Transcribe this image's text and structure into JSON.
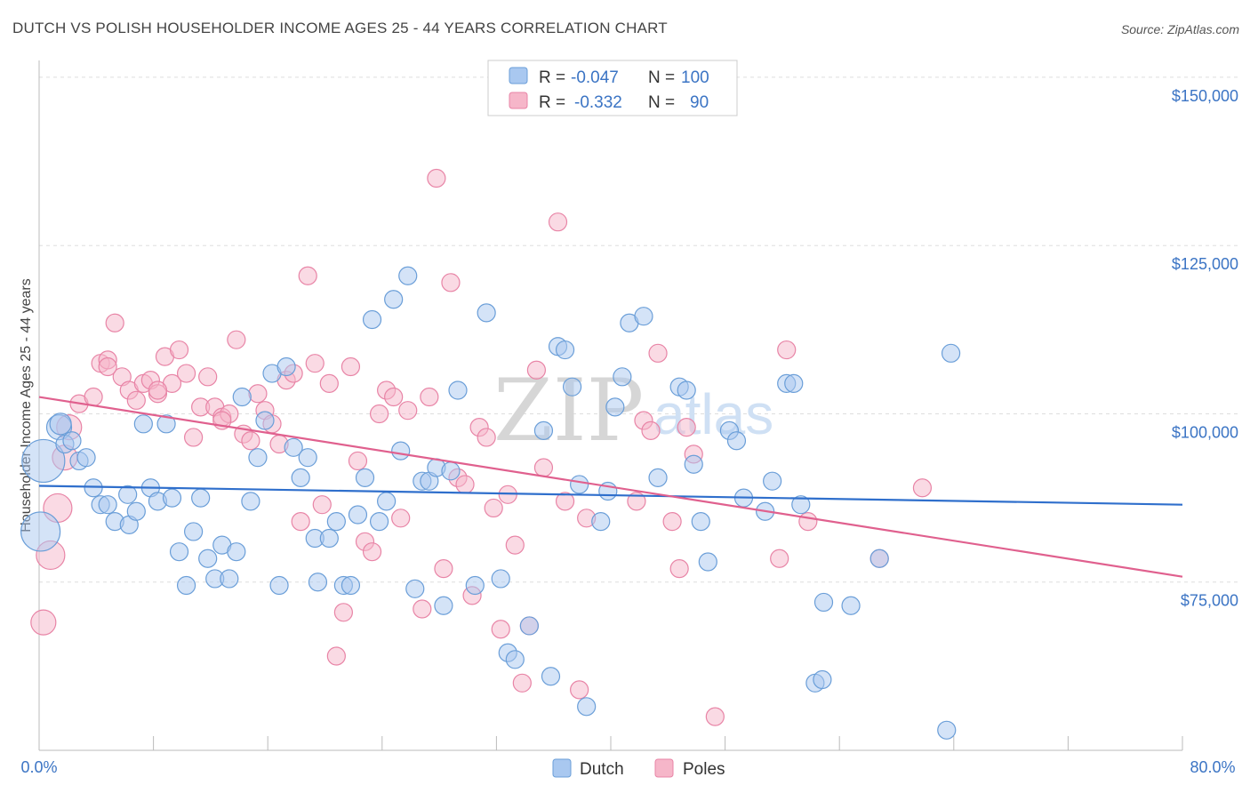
{
  "header": {
    "title": "DUTCH VS POLISH HOUSEHOLDER INCOME AGES 25 - 44 YEARS CORRELATION CHART",
    "source": "Source: ZipAtlas.com"
  },
  "legend": {
    "dutch": {
      "r_label": "R =",
      "r_value": "-0.047",
      "n_label": "N =",
      "n_value": "100"
    },
    "poles": {
      "r_label": "R =",
      "r_value": "-0.332",
      "n_label": "N =",
      "n_value": "90"
    }
  },
  "bottom_legend": {
    "dutch": "Dutch",
    "poles": "Poles"
  },
  "watermark": {
    "zip": "ZIP",
    "atlas": "atlas"
  },
  "colors": {
    "dutch_fill": "#a9c8f0",
    "dutch_stroke": "#6a9ed8",
    "dutch_line": "#2f6fcc",
    "poles_fill": "#f6b6c9",
    "poles_stroke": "#e884a6",
    "poles_line": "#e0608e",
    "tick": "#3b74c4",
    "grid": "#dddddd"
  },
  "chart_data": {
    "type": "scatter",
    "title": "DUTCH VS POLISH HOUSEHOLDER INCOME AGES 25 - 44 YEARS CORRELATION CHART",
    "xlabel": "",
    "ylabel": "Householder Income Ages 25 - 44 years",
    "xlim": [
      0,
      80
    ],
    "ylim": [
      50000,
      152500
    ],
    "x_tick_labels": [
      "0.0%",
      "80.0%"
    ],
    "y_ticks": [
      75000,
      100000,
      125000,
      150000
    ],
    "y_tick_labels": [
      "$75,000",
      "$100,000",
      "$125,000",
      "$150,000"
    ],
    "grid": true,
    "legend_position": "top-center",
    "series": [
      {
        "name": "Dutch",
        "r": -0.047,
        "n": 100,
        "trend": [
          [
            0,
            89300
          ],
          [
            80,
            86500
          ]
        ],
        "points": [
          [
            0.1,
            82500,
            22
          ],
          [
            0.3,
            93000,
            24
          ],
          [
            1.4,
            98000,
            14
          ],
          [
            1.8,
            95500,
            10
          ],
          [
            2.3,
            96000,
            10
          ],
          [
            2.8,
            93000,
            10
          ],
          [
            3.3,
            93500,
            10
          ],
          [
            3.8,
            89000,
            10
          ],
          [
            4.3,
            86500,
            10
          ],
          [
            4.8,
            86500,
            10
          ],
          [
            5.3,
            84000,
            10
          ],
          [
            6.2,
            88000,
            10
          ],
          [
            6.3,
            83500,
            10
          ],
          [
            6.8,
            85500,
            10
          ],
          [
            7.3,
            98500,
            10
          ],
          [
            7.8,
            89000,
            10
          ],
          [
            8.3,
            87000,
            10
          ],
          [
            8.9,
            98500,
            10
          ],
          [
            9.3,
            87500,
            10
          ],
          [
            9.8,
            79500,
            10
          ],
          [
            10.3,
            74500,
            10
          ],
          [
            10.8,
            82500,
            10
          ],
          [
            11.3,
            87500,
            10
          ],
          [
            11.8,
            78500,
            10
          ],
          [
            12.3,
            75500,
            10
          ],
          [
            12.8,
            80500,
            10
          ],
          [
            13.3,
            75500,
            10
          ],
          [
            13.8,
            79500,
            10
          ],
          [
            14.2,
            102500,
            10
          ],
          [
            14.8,
            87000,
            10
          ],
          [
            15.3,
            93500,
            10
          ],
          [
            15.8,
            99000,
            10
          ],
          [
            16.3,
            106000,
            10
          ],
          [
            16.8,
            74500,
            10
          ],
          [
            17.3,
            107000,
            10
          ],
          [
            17.8,
            95000,
            10
          ],
          [
            18.3,
            90500,
            10
          ],
          [
            18.8,
            93500,
            10
          ],
          [
            19.3,
            81500,
            10
          ],
          [
            19.5,
            75000,
            10
          ],
          [
            20.3,
            81500,
            10
          ],
          [
            20.8,
            84000,
            10
          ],
          [
            21.3,
            74500,
            10
          ],
          [
            21.8,
            74500,
            10
          ],
          [
            22.3,
            85000,
            10
          ],
          [
            22.8,
            90500,
            10
          ],
          [
            23.3,
            114000,
            10
          ],
          [
            23.8,
            84000,
            10
          ],
          [
            24.3,
            87000,
            10
          ],
          [
            24.8,
            117000,
            10
          ],
          [
            25.3,
            94500,
            10
          ],
          [
            25.8,
            120500,
            10
          ],
          [
            26.3,
            74000,
            10
          ],
          [
            26.8,
            90000,
            10
          ],
          [
            27.3,
            90000,
            10
          ],
          [
            27.8,
            92000,
            10
          ],
          [
            28.3,
            71500,
            10
          ],
          [
            28.8,
            91500,
            10
          ],
          [
            29.3,
            103500,
            10
          ],
          [
            30.5,
            74500,
            10
          ],
          [
            31.3,
            115000,
            10
          ],
          [
            32.3,
            75500,
            10
          ],
          [
            32.8,
            64500,
            10
          ],
          [
            33.3,
            63500,
            10
          ],
          [
            34.3,
            68500,
            10
          ],
          [
            35.3,
            97500,
            10
          ],
          [
            35.8,
            61000,
            10
          ],
          [
            36.3,
            110000,
            10
          ],
          [
            36.8,
            109500,
            10
          ],
          [
            37.3,
            104000,
            10
          ],
          [
            37.8,
            89500,
            10
          ],
          [
            38.3,
            56500,
            10
          ],
          [
            39.3,
            84000,
            10
          ],
          [
            39.8,
            88500,
            10
          ],
          [
            40.3,
            101000,
            10
          ],
          [
            40.8,
            105500,
            10
          ],
          [
            41.3,
            113500,
            10
          ],
          [
            42.3,
            114500,
            10
          ],
          [
            43.3,
            90500,
            10
          ],
          [
            44.8,
            104000,
            10
          ],
          [
            45.3,
            103500,
            10
          ],
          [
            45.8,
            92500,
            10
          ],
          [
            46.3,
            84000,
            10
          ],
          [
            46.8,
            78000,
            10
          ],
          [
            48.3,
            97500,
            10
          ],
          [
            48.8,
            96000,
            10
          ],
          [
            49.3,
            87500,
            10
          ],
          [
            50.8,
            85500,
            10
          ],
          [
            51.3,
            90000,
            10
          ],
          [
            52.3,
            104500,
            10
          ],
          [
            52.8,
            104500,
            10
          ],
          [
            53.3,
            86500,
            10
          ],
          [
            54.3,
            60000,
            10
          ],
          [
            54.8,
            60500,
            10
          ],
          [
            54.9,
            72000,
            10
          ],
          [
            56.8,
            71500,
            10
          ],
          [
            58.8,
            78500,
            10
          ],
          [
            63.5,
            53000,
            10
          ],
          [
            63.8,
            109000,
            10
          ],
          [
            1.5,
            98500,
            12
          ]
        ]
      },
      {
        "name": "Poles",
        "r": -0.332,
        "n": 90,
        "trend": [
          [
            0,
            102500
          ],
          [
            80,
            75800
          ]
        ],
        "points": [
          [
            0.3,
            69000,
            14
          ],
          [
            0.8,
            79000,
            16
          ],
          [
            1.3,
            86000,
            16
          ],
          [
            1.8,
            93500,
            14
          ],
          [
            2.1,
            98000,
            14
          ],
          [
            2.8,
            101500,
            10
          ],
          [
            3.8,
            102500,
            10
          ],
          [
            4.3,
            107500,
            10
          ],
          [
            4.8,
            108000,
            10
          ],
          [
            5.3,
            113500,
            10
          ],
          [
            5.8,
            105500,
            10
          ],
          [
            6.3,
            103500,
            10
          ],
          [
            6.8,
            102000,
            10
          ],
          [
            7.3,
            104500,
            10
          ],
          [
            7.8,
            105000,
            10
          ],
          [
            8.3,
            103000,
            10
          ],
          [
            8.8,
            108500,
            10
          ],
          [
            9.3,
            104500,
            10
          ],
          [
            9.8,
            109500,
            10
          ],
          [
            10.3,
            106000,
            10
          ],
          [
            10.8,
            96500,
            10
          ],
          [
            11.3,
            101000,
            10
          ],
          [
            11.8,
            105500,
            10
          ],
          [
            12.3,
            101000,
            10
          ],
          [
            12.8,
            99500,
            10
          ],
          [
            13.3,
            100000,
            10
          ],
          [
            13.8,
            111000,
            10
          ],
          [
            14.3,
            97000,
            10
          ],
          [
            14.8,
            96000,
            10
          ],
          [
            15.3,
            103000,
            10
          ],
          [
            15.8,
            100500,
            10
          ],
          [
            16.3,
            98500,
            10
          ],
          [
            16.8,
            95500,
            10
          ],
          [
            17.3,
            105000,
            10
          ],
          [
            17.8,
            106000,
            10
          ],
          [
            18.3,
            84000,
            10
          ],
          [
            18.8,
            120500,
            10
          ],
          [
            19.3,
            107500,
            10
          ],
          [
            19.8,
            86500,
            10
          ],
          [
            20.3,
            104500,
            10
          ],
          [
            20.8,
            64000,
            10
          ],
          [
            21.3,
            70500,
            10
          ],
          [
            21.8,
            107000,
            10
          ],
          [
            22.3,
            93000,
            10
          ],
          [
            22.8,
            81000,
            10
          ],
          [
            23.3,
            79500,
            10
          ],
          [
            23.8,
            100000,
            10
          ],
          [
            24.3,
            103500,
            10
          ],
          [
            24.8,
            102500,
            10
          ],
          [
            25.3,
            84500,
            10
          ],
          [
            25.8,
            100500,
            10
          ],
          [
            26.8,
            71000,
            10
          ],
          [
            27.3,
            102500,
            10
          ],
          [
            27.8,
            135000,
            10
          ],
          [
            28.3,
            77000,
            10
          ],
          [
            28.8,
            119500,
            10
          ],
          [
            29.3,
            90500,
            10
          ],
          [
            29.8,
            89500,
            10
          ],
          [
            30.3,
            73000,
            10
          ],
          [
            30.8,
            98000,
            10
          ],
          [
            31.3,
            96500,
            10
          ],
          [
            31.8,
            86000,
            10
          ],
          [
            32.3,
            68000,
            10
          ],
          [
            32.8,
            88000,
            10
          ],
          [
            33.3,
            80500,
            10
          ],
          [
            33.8,
            60000,
            10
          ],
          [
            34.3,
            68500,
            10
          ],
          [
            34.8,
            106500,
            10
          ],
          [
            35.3,
            92000,
            10
          ],
          [
            36.3,
            128500,
            10
          ],
          [
            36.8,
            87000,
            10
          ],
          [
            37.8,
            59000,
            10
          ],
          [
            38.3,
            84500,
            10
          ],
          [
            41.8,
            87000,
            10
          ],
          [
            42.3,
            99000,
            10
          ],
          [
            42.8,
            97500,
            10
          ],
          [
            43.3,
            109000,
            10
          ],
          [
            44.3,
            84000,
            10
          ],
          [
            44.8,
            77000,
            10
          ],
          [
            45.3,
            98000,
            10
          ],
          [
            45.8,
            94000,
            10
          ],
          [
            47.3,
            55000,
            10
          ],
          [
            51.8,
            78500,
            10
          ],
          [
            52.3,
            109500,
            10
          ],
          [
            53.8,
            84000,
            10
          ],
          [
            58.8,
            78500,
            10
          ],
          [
            61.8,
            89000,
            10
          ],
          [
            4.8,
            107000,
            10
          ],
          [
            8.3,
            103500,
            10
          ],
          [
            12.8,
            99000,
            10
          ]
        ]
      }
    ]
  }
}
